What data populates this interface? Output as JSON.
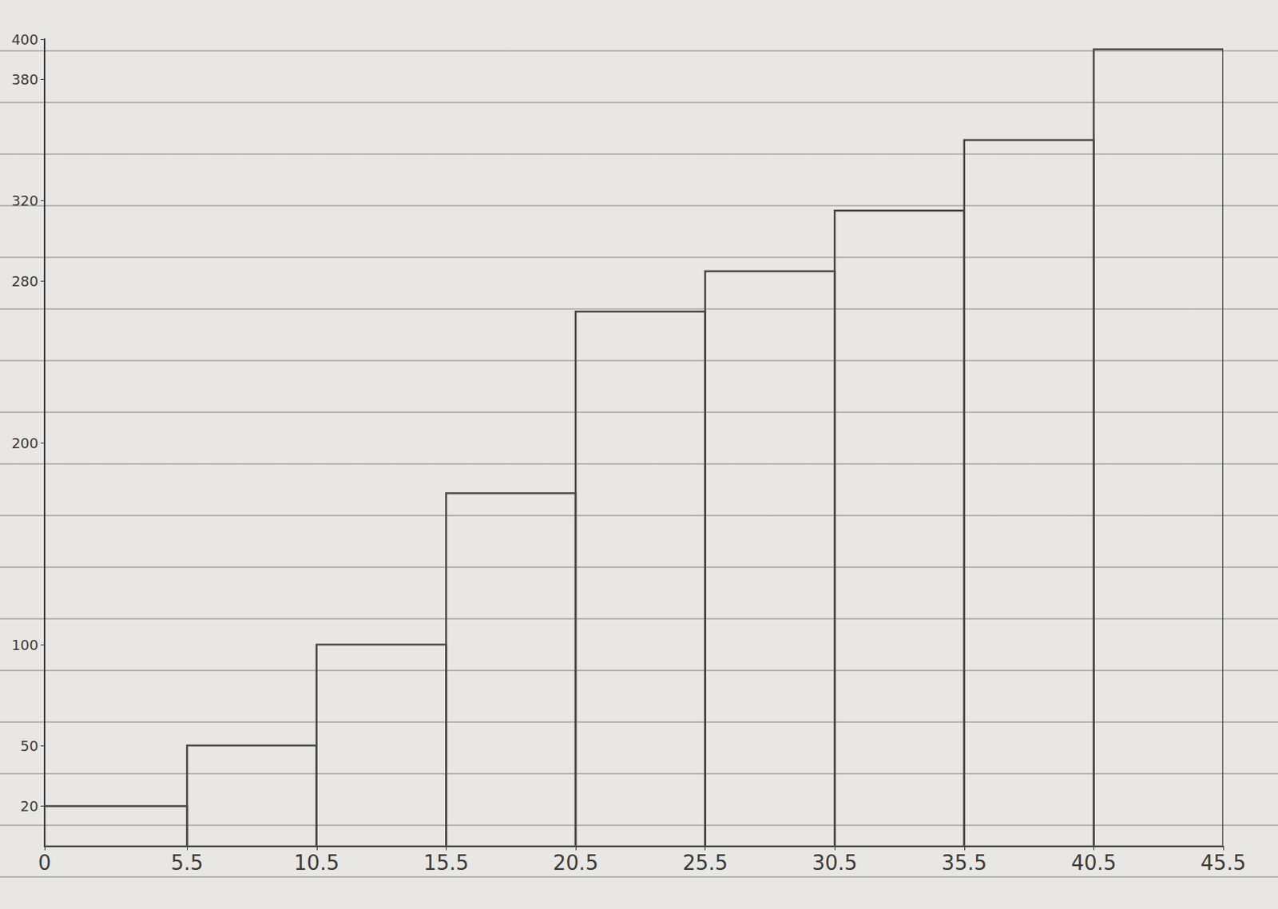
{
  "chart_data": {
    "type": "histogram",
    "bins": [
      0,
      5.5,
      10.5,
      15.5,
      20.5,
      25.5,
      30.5,
      35.5,
      40.5,
      45.5
    ],
    "values": [
      20,
      50,
      100,
      175,
      265,
      285,
      315,
      350,
      395
    ],
    "color": "#4a4a4a",
    "xlim": [
      0,
      45.5
    ],
    "xticks": [
      0,
      5.5,
      10.5,
      15.5,
      20.5,
      25.5,
      30.5,
      35.5,
      40.5,
      45.5
    ],
    "ylim": [
      0,
      400
    ],
    "yticks": [
      20,
      50,
      100,
      200,
      280,
      320,
      380,
      400
    ],
    "grid": false
  }
}
